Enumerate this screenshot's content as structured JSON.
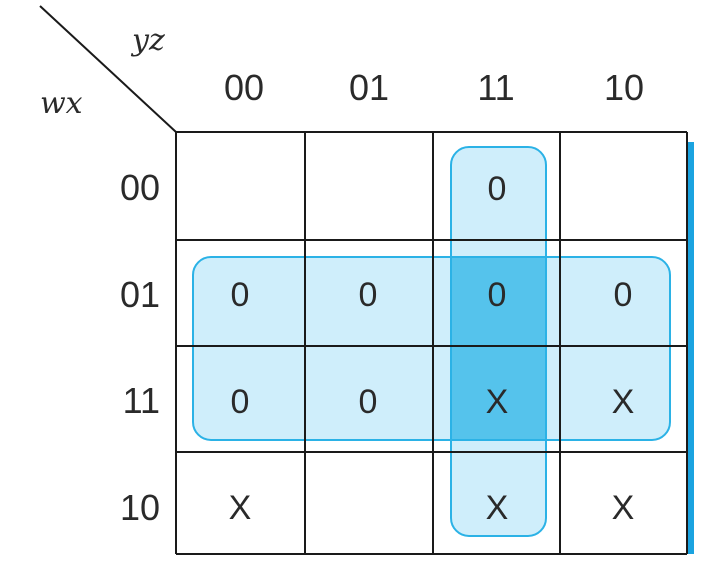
{
  "corner": {
    "column_vars": "yz",
    "row_vars": "wx"
  },
  "column_labels": [
    "00",
    "01",
    "11",
    "10"
  ],
  "row_labels": [
    "00",
    "01",
    "11",
    "10"
  ],
  "cells": [
    [
      "",
      "",
      "0",
      ""
    ],
    [
      "0",
      "0",
      "0",
      "0"
    ],
    [
      "0",
      "0",
      "X",
      "X"
    ],
    [
      "X",
      "",
      "X",
      "X"
    ]
  ],
  "groups": [
    {
      "type": "row-block",
      "rows": [
        1,
        2
      ],
      "cols": [
        0,
        3
      ]
    },
    {
      "type": "column-block",
      "rows": [
        0,
        3
      ],
      "cols": [
        2,
        2
      ]
    }
  ],
  "colors": {
    "group_fill": "#cfeefb",
    "group_overlap": "#55c3ec",
    "group_stroke": "#2bb2e6",
    "grid": "#1a1a1a",
    "accent_bar": "#1aa3e0"
  }
}
